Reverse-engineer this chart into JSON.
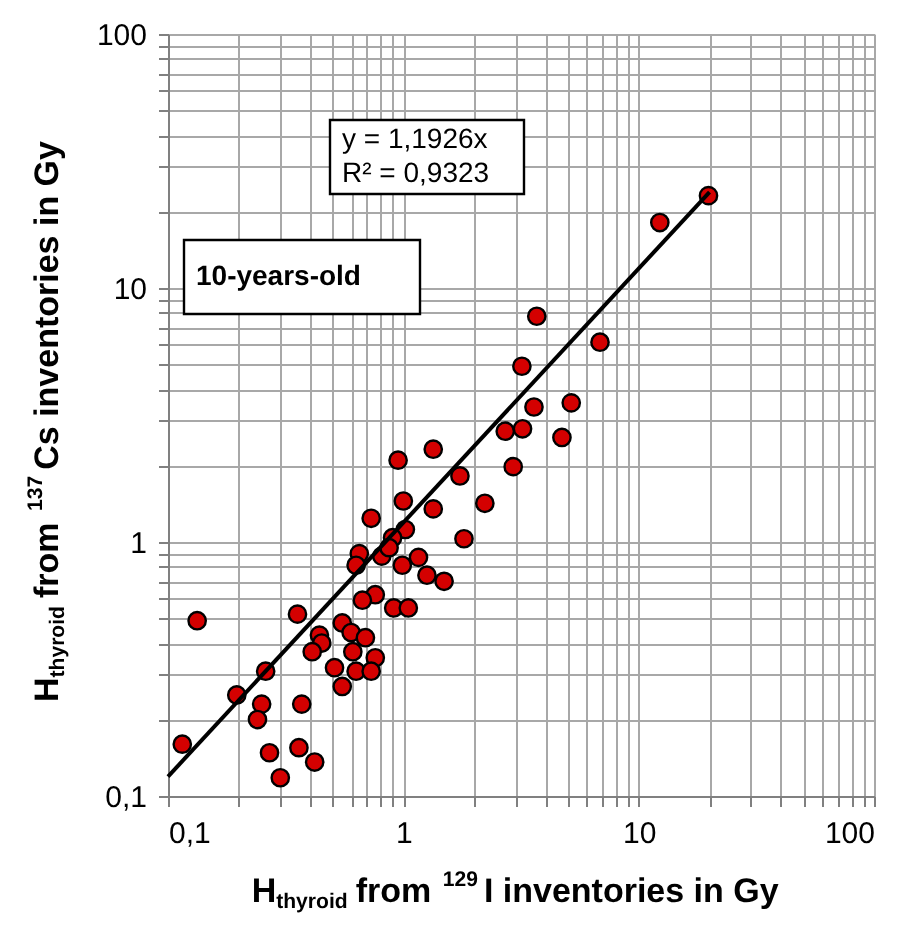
{
  "chart_data": {
    "type": "scatter",
    "xlabel": "H$_{thyroid}$ from $^{129}$I inventories in Gy",
    "ylabel": "H$_{thyroid}$ from $^{137}$Cs inventories in Gy",
    "annotations": [
      "y = 1,1926x\nR² = 0,9323",
      "10-years-old"
    ],
    "log": "xy",
    "grid": true,
    "marker": "circle",
    "xlim": [
      0.1,
      100
    ],
    "ylim": [
      0.1,
      100
    ],
    "xticks": [
      {
        "value": 0.1,
        "label": "0,1"
      },
      1,
      10,
      100
    ],
    "yticks": [
      {
        "value": 0.1,
        "label": "0,1"
      },
      1,
      10,
      100
    ],
    "series": [
      {
        "color": "#d40000",
        "x": [
          19.8,
          12.3,
          3.69,
          6.85,
          3.19,
          3.59,
          5.17,
          2.71,
          3.21,
          4.72,
          2.93,
          0.95,
          1.34,
          1.74,
          2.22,
          1.0,
          1.34,
          0.73,
          1.02,
          0.9,
          1.81,
          0.65,
          0.63,
          0.81,
          0.87,
          1.16,
          0.99,
          1.26,
          1.49,
          0.76,
          0.67,
          0.91,
          1.05,
          0.133,
          0.355,
          0.55,
          0.6,
          0.69,
          0.44,
          0.45,
          0.41,
          0.61,
          0.76,
          0.51,
          0.63,
          0.73,
          0.55,
          0.26,
          0.196,
          0.25,
          0.24,
          0.37,
          0.115,
          0.27,
          0.36,
          0.42,
          0.3
        ],
        "values": [
          23.1,
          18.1,
          7.74,
          6.12,
          4.92,
          3.4,
          3.53,
          2.73,
          2.79,
          2.58,
          1.98,
          2.1,
          2.32,
          1.82,
          1.42,
          1.45,
          1.35,
          1.24,
          1.12,
          1.04,
          1.03,
          0.9,
          0.81,
          0.88,
          0.95,
          0.87,
          0.81,
          0.74,
          0.7,
          0.62,
          0.59,
          0.55,
          0.55,
          0.49,
          0.52,
          0.48,
          0.44,
          0.42,
          0.43,
          0.4,
          0.37,
          0.37,
          0.35,
          0.32,
          0.31,
          0.31,
          0.27,
          0.31,
          0.25,
          0.23,
          0.2,
          0.23,
          0.16,
          0.148,
          0.155,
          0.136,
          0.118
        ]
      },
      {
        "type": "line",
        "color": "#000000",
        "line_style": "solid",
        "marker": "none",
        "x": [
          0.1,
          20
        ],
        "values": [
          0.11926,
          23.852
        ]
      }
    ]
  }
}
